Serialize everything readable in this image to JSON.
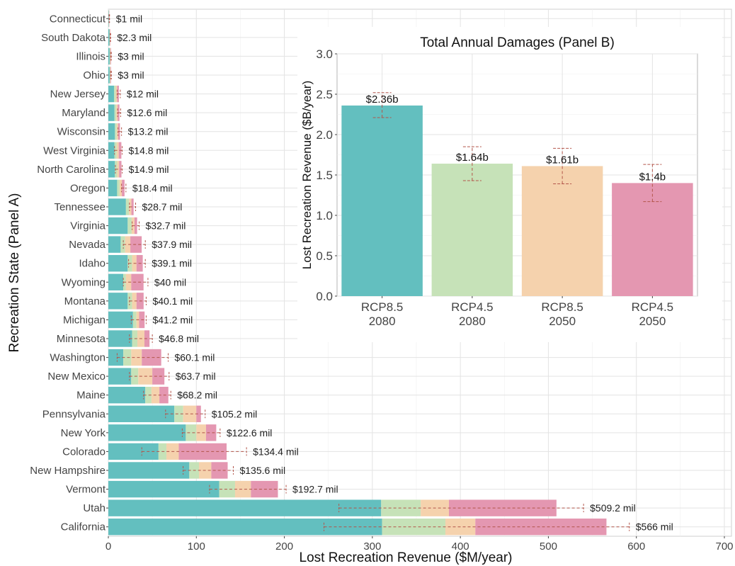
{
  "chart_data": [
    {
      "type": "bar",
      "orientation": "horizontal",
      "stacked": true,
      "xlabel": "Lost Recreation Revenue ($M/year)",
      "ylabel": "Recreation State (Panel A)",
      "xlim": [
        0,
        700
      ],
      "xticks": [
        0,
        100,
        200,
        300,
        400,
        500,
        600,
        700
      ],
      "grid": true,
      "legend": "none",
      "colors": [
        "#63bfbf",
        "#c6e2b8",
        "#f5d2ad",
        "#e497b1"
      ],
      "errorbar_color": "#b2554a",
      "categories": [
        "Connecticut",
        "South Dakota",
        "Illinois",
        "Ohio",
        "New Jersey",
        "Maryland",
        "Wisconsin",
        "West Virginia",
        "North Carolina",
        "Oregon",
        "Tennessee",
        "Virginia",
        "Nevada",
        "Idaho",
        "Wyoming",
        "Montana",
        "Michigan",
        "Minnesota",
        "Washington",
        "New Mexico",
        "Maine",
        "Pennsylvania",
        "New York",
        "Colorado",
        "New Hampshire",
        "Vermont",
        "Utah",
        "California"
      ],
      "segments": [
        [
          0.4,
          0.2,
          0.2,
          0.2
        ],
        [
          1.2,
          0.4,
          0.3,
          0.4
        ],
        [
          1.5,
          0.5,
          0.4,
          0.6
        ],
        [
          1.5,
          0.5,
          0.4,
          0.6
        ],
        [
          6.5,
          2,
          1.5,
          2
        ],
        [
          7,
          2,
          1.6,
          2
        ],
        [
          7.5,
          2,
          1.7,
          2
        ],
        [
          7,
          2.5,
          2.3,
          3
        ],
        [
          7.5,
          2.5,
          2.2,
          2.7
        ],
        [
          10,
          2.8,
          2.6,
          3
        ],
        [
          20,
          3.5,
          2.7,
          2.5
        ],
        [
          22,
          4.5,
          3.2,
          3
        ],
        [
          14,
          5,
          6,
          12.9
        ],
        [
          22,
          5,
          5,
          7.1
        ],
        [
          17,
          3,
          6,
          14
        ],
        [
          22,
          5,
          5,
          8.1
        ],
        [
          28,
          4,
          3,
          6.2
        ],
        [
          27,
          6,
          8,
          5.8
        ],
        [
          17,
          9,
          12,
          22.1
        ],
        [
          26,
          8,
          16,
          13.7
        ],
        [
          42,
          7,
          9,
          10.2
        ],
        [
          75,
          10,
          15,
          5.2
        ],
        [
          88,
          12,
          11,
          11.6
        ],
        [
          57,
          9,
          14,
          54.4
        ],
        [
          92,
          11,
          14,
          18.6
        ],
        [
          126,
          18,
          18,
          30.7
        ],
        [
          310,
          45,
          32,
          122.2
        ],
        [
          311,
          72,
          34,
          149
        ]
      ],
      "totals_labels": [
        "$1 mil",
        "$2.3 mil",
        "$3 mil",
        "$3 mil",
        "$12 mil",
        "$12.6 mil",
        "$13.2 mil",
        "$14.8 mil",
        "$14.9 mil",
        "$18.4 mil",
        "$28.7 mil",
        "$32.7 mil",
        "$37.9 mil",
        "$39.1 mil",
        "$40 mil",
        "$40.1 mil",
        "$41.2 mil",
        "$46.8 mil",
        "$60.1 mil",
        "$63.7 mil",
        "$68.2 mil",
        "$105.2 mil",
        "$122.6 mil",
        "$134.4 mil",
        "$135.6 mil",
        "$192.7 mil",
        "$509.2 mil",
        "$566 mil"
      ],
      "error_ranges": [
        [
          0.8,
          1.4
        ],
        [
          2,
          2.6
        ],
        [
          2.6,
          3.4
        ],
        [
          2.6,
          3.4
        ],
        [
          10,
          13.6
        ],
        [
          10.5,
          14
        ],
        [
          11,
          15
        ],
        [
          7,
          15.7
        ],
        [
          8,
          15.8
        ],
        [
          15,
          20
        ],
        [
          24,
          31
        ],
        [
          27,
          35
        ],
        [
          17,
          42
        ],
        [
          23,
          42
        ],
        [
          17,
          45
        ],
        [
          24,
          43
        ],
        [
          26,
          43
        ],
        [
          24,
          50
        ],
        [
          10,
          68
        ],
        [
          24,
          69
        ],
        [
          40,
          71
        ],
        [
          65,
          110
        ],
        [
          84,
          127
        ],
        [
          38,
          157
        ],
        [
          85,
          142
        ],
        [
          115,
          202
        ],
        [
          262,
          540
        ],
        [
          245,
          592
        ]
      ]
    },
    {
      "type": "bar",
      "title": "Total Annual Damages (Panel B)",
      "ylabel": "Lost Recreation Revenue ($B/year)",
      "ylim": [
        0,
        3
      ],
      "yticks": [
        "0.0",
        "0.5",
        "1.0",
        "1.5",
        "2.0",
        "2.5",
        "3.0"
      ],
      "grid": true,
      "legend": "none",
      "categories": [
        [
          "RCP8.5",
          "2080"
        ],
        [
          "RCP4.5",
          "2080"
        ],
        [
          "RCP8.5",
          "2050"
        ],
        [
          "RCP4.5",
          "2050"
        ]
      ],
      "values": [
        2.36,
        1.64,
        1.61,
        1.4
      ],
      "value_labels": [
        "$2.36b",
        "$1.64b",
        "$1.61b",
        "$1.4b"
      ],
      "error_ranges": [
        [
          2.21,
          2.52
        ],
        [
          1.43,
          1.85
        ],
        [
          1.39,
          1.83
        ],
        [
          1.17,
          1.63
        ]
      ],
      "colors": [
        "#63bfbf",
        "#c6e2b8",
        "#f5d2ad",
        "#e497b1"
      ]
    }
  ]
}
